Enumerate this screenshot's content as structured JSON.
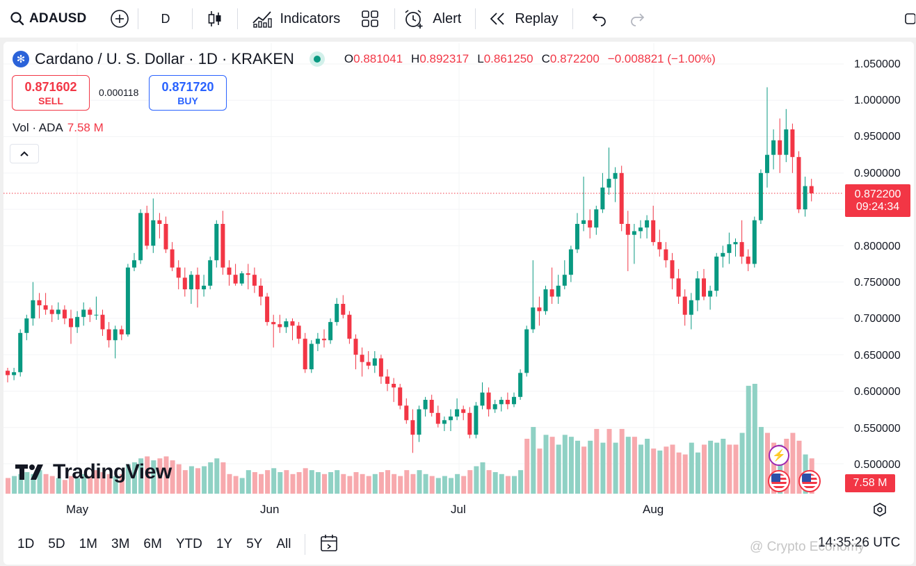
{
  "toolbar": {
    "symbol": "ADAUSD",
    "interval": "D",
    "indicators_label": "Indicators",
    "alert_label": "Alert",
    "replay_label": "Replay"
  },
  "legend": {
    "title": "Cardano / U. S. Dollar · 1D · KRAKEN",
    "open_key": "O",
    "open": "0.881041",
    "high_key": "H",
    "high": "0.892317",
    "low_key": "L",
    "low": "0.861250",
    "close_key": "C",
    "close": "0.872200",
    "change": "−0.008821 (−1.00%)"
  },
  "trade": {
    "sell_price": "0.871602",
    "sell_label": "SELL",
    "spread": "0.000118",
    "buy_price": "0.871720",
    "buy_label": "BUY"
  },
  "volume_legend": {
    "label": "Vol · ADA",
    "value": "7.58 M"
  },
  "price_axis": [
    "1.050000",
    "1.000000",
    "0.950000",
    "0.900000",
    "0.800000",
    "0.750000",
    "0.700000",
    "0.650000",
    "0.600000",
    "0.550000",
    "0.500000"
  ],
  "last_price_tag": {
    "price": "0.872200",
    "countdown": "09:24:34"
  },
  "volume_tag": "7.58 M",
  "time_axis": [
    "May",
    "Jun",
    "Jul",
    "Aug"
  ],
  "ranges": [
    "1D",
    "5D",
    "1M",
    "3M",
    "6M",
    "YTD",
    "1Y",
    "5Y",
    "All"
  ],
  "clock": "14:35:26 UTC",
  "watermark": "@ Crypto Economy",
  "logo_text": "TradingView",
  "colors": {
    "up": "#089981",
    "down": "#f23645",
    "up_vol": "#8fd1c4",
    "down_vol": "#f7a9ad"
  },
  "chart_data": {
    "type": "candlestick",
    "ylim": [
      0.5,
      1.05
    ],
    "candles": [
      [
        0.628,
        0.632,
        0.612,
        0.622
      ],
      [
        0.622,
        0.632,
        0.615,
        0.626
      ],
      [
        0.626,
        0.685,
        0.62,
        0.68
      ],
      [
        0.68,
        0.705,
        0.67,
        0.7
      ],
      [
        0.7,
        0.75,
        0.69,
        0.725
      ],
      [
        0.725,
        0.735,
        0.7,
        0.718
      ],
      [
        0.718,
        0.735,
        0.705,
        0.712
      ],
      [
        0.712,
        0.718,
        0.695,
        0.706
      ],
      [
        0.706,
        0.722,
        0.698,
        0.712
      ],
      [
        0.712,
        0.718,
        0.692,
        0.7
      ],
      [
        0.7,
        0.712,
        0.665,
        0.688
      ],
      [
        0.688,
        0.71,
        0.68,
        0.702
      ],
      [
        0.702,
        0.722,
        0.69,
        0.712
      ],
      [
        0.712,
        0.715,
        0.695,
        0.705
      ],
      [
        0.705,
        0.73,
        0.698,
        0.705
      ],
      [
        0.705,
        0.712,
        0.676,
        0.685
      ],
      [
        0.685,
        0.695,
        0.66,
        0.67
      ],
      [
        0.67,
        0.69,
        0.645,
        0.685
      ],
      [
        0.685,
        0.69,
        0.67,
        0.678
      ],
      [
        0.678,
        0.775,
        0.675,
        0.77
      ],
      [
        0.77,
        0.79,
        0.765,
        0.78
      ],
      [
        0.78,
        0.85,
        0.775,
        0.845
      ],
      [
        0.845,
        0.855,
        0.795,
        0.8
      ],
      [
        0.8,
        0.865,
        0.79,
        0.835
      ],
      [
        0.835,
        0.845,
        0.81,
        0.83
      ],
      [
        0.83,
        0.84,
        0.79,
        0.795
      ],
      [
        0.795,
        0.805,
        0.765,
        0.77
      ],
      [
        0.77,
        0.78,
        0.74,
        0.756
      ],
      [
        0.756,
        0.77,
        0.73,
        0.74
      ],
      [
        0.74,
        0.765,
        0.72,
        0.76
      ],
      [
        0.76,
        0.77,
        0.715,
        0.74
      ],
      [
        0.74,
        0.76,
        0.73,
        0.745
      ],
      [
        0.745,
        0.785,
        0.74,
        0.78
      ],
      [
        0.78,
        0.835,
        0.77,
        0.83
      ],
      [
        0.83,
        0.848,
        0.76,
        0.77
      ],
      [
        0.77,
        0.78,
        0.745,
        0.76
      ],
      [
        0.76,
        0.775,
        0.745,
        0.748
      ],
      [
        0.748,
        0.765,
        0.745,
        0.762
      ],
      [
        0.762,
        0.775,
        0.74,
        0.76
      ],
      [
        0.76,
        0.77,
        0.735,
        0.745
      ],
      [
        0.745,
        0.755,
        0.718,
        0.73
      ],
      [
        0.73,
        0.735,
        0.69,
        0.695
      ],
      [
        0.695,
        0.705,
        0.66,
        0.692
      ],
      [
        0.692,
        0.705,
        0.68,
        0.688
      ],
      [
        0.688,
        0.7,
        0.68,
        0.696
      ],
      [
        0.696,
        0.7,
        0.67,
        0.69
      ],
      [
        0.69,
        0.695,
        0.665,
        0.672
      ],
      [
        0.672,
        0.68,
        0.625,
        0.63
      ],
      [
        0.63,
        0.67,
        0.625,
        0.665
      ],
      [
        0.665,
        0.68,
        0.655,
        0.672
      ],
      [
        0.672,
        0.685,
        0.66,
        0.67
      ],
      [
        0.67,
        0.7,
        0.665,
        0.695
      ],
      [
        0.695,
        0.728,
        0.69,
        0.72
      ],
      [
        0.72,
        0.732,
        0.7,
        0.705
      ],
      [
        0.705,
        0.71,
        0.665,
        0.672
      ],
      [
        0.672,
        0.678,
        0.63,
        0.65
      ],
      [
        0.65,
        0.66,
        0.62,
        0.64
      ],
      [
        0.64,
        0.655,
        0.63,
        0.635
      ],
      [
        0.635,
        0.655,
        0.625,
        0.645
      ],
      [
        0.645,
        0.65,
        0.61,
        0.62
      ],
      [
        0.62,
        0.63,
        0.6,
        0.61
      ],
      [
        0.61,
        0.618,
        0.585,
        0.605
      ],
      [
        0.605,
        0.61,
        0.575,
        0.58
      ],
      [
        0.58,
        0.59,
        0.555,
        0.56
      ],
      [
        0.56,
        0.575,
        0.515,
        0.54
      ],
      [
        0.54,
        0.58,
        0.53,
        0.575
      ],
      [
        0.575,
        0.592,
        0.565,
        0.588
      ],
      [
        0.588,
        0.595,
        0.565,
        0.57
      ],
      [
        0.57,
        0.58,
        0.55,
        0.555
      ],
      [
        0.555,
        0.565,
        0.545,
        0.56
      ],
      [
        0.56,
        0.575,
        0.545,
        0.565
      ],
      [
        0.565,
        0.59,
        0.56,
        0.575
      ],
      [
        0.575,
        0.58,
        0.56,
        0.57
      ],
      [
        0.57,
        0.578,
        0.535,
        0.54
      ],
      [
        0.54,
        0.585,
        0.535,
        0.58
      ],
      [
        0.58,
        0.612,
        0.575,
        0.598
      ],
      [
        0.598,
        0.605,
        0.565,
        0.575
      ],
      [
        0.575,
        0.588,
        0.57,
        0.582
      ],
      [
        0.582,
        0.592,
        0.572,
        0.588
      ],
      [
        0.588,
        0.598,
        0.575,
        0.582
      ],
      [
        0.582,
        0.598,
        0.578,
        0.592
      ],
      [
        0.592,
        0.63,
        0.588,
        0.625
      ],
      [
        0.625,
        0.69,
        0.62,
        0.685
      ],
      [
        0.685,
        0.78,
        0.68,
        0.715
      ],
      [
        0.715,
        0.73,
        0.69,
        0.71
      ],
      [
        0.71,
        0.745,
        0.705,
        0.74
      ],
      [
        0.74,
        0.77,
        0.72,
        0.73
      ],
      [
        0.73,
        0.76,
        0.72,
        0.745
      ],
      [
        0.745,
        0.78,
        0.74,
        0.76
      ],
      [
        0.76,
        0.8,
        0.75,
        0.795
      ],
      [
        0.795,
        0.845,
        0.79,
        0.83
      ],
      [
        0.83,
        0.895,
        0.82,
        0.835
      ],
      [
        0.835,
        0.85,
        0.81,
        0.825
      ],
      [
        0.825,
        0.855,
        0.815,
        0.85
      ],
      [
        0.85,
        0.9,
        0.845,
        0.88
      ],
      [
        0.88,
        0.935,
        0.87,
        0.892
      ],
      [
        0.892,
        0.908,
        0.86,
        0.9
      ],
      [
        0.9,
        0.91,
        0.82,
        0.83
      ],
      [
        0.83,
        0.848,
        0.765,
        0.815
      ],
      [
        0.815,
        0.83,
        0.775,
        0.82
      ],
      [
        0.82,
        0.835,
        0.81,
        0.825
      ],
      [
        0.825,
        0.842,
        0.81,
        0.835
      ],
      [
        0.835,
        0.855,
        0.8,
        0.805
      ],
      [
        0.805,
        0.822,
        0.785,
        0.795
      ],
      [
        0.795,
        0.805,
        0.77,
        0.78
      ],
      [
        0.78,
        0.79,
        0.74,
        0.755
      ],
      [
        0.755,
        0.768,
        0.72,
        0.73
      ],
      [
        0.73,
        0.74,
        0.69,
        0.705
      ],
      [
        0.705,
        0.735,
        0.685,
        0.725
      ],
      [
        0.725,
        0.765,
        0.71,
        0.755
      ],
      [
        0.755,
        0.768,
        0.725,
        0.73
      ],
      [
        0.73,
        0.745,
        0.712,
        0.738
      ],
      [
        0.738,
        0.79,
        0.73,
        0.785
      ],
      [
        0.785,
        0.8,
        0.77,
        0.79
      ],
      [
        0.79,
        0.818,
        0.775,
        0.802
      ],
      [
        0.802,
        0.81,
        0.785,
        0.805
      ],
      [
        0.805,
        0.835,
        0.775,
        0.785
      ],
      [
        0.785,
        0.795,
        0.765,
        0.775
      ],
      [
        0.775,
        0.84,
        0.77,
        0.835
      ],
      [
        0.835,
        0.905,
        0.83,
        0.9
      ],
      [
        0.9,
        1.018,
        0.88,
        0.925
      ],
      [
        0.925,
        0.96,
        0.905,
        0.945
      ],
      [
        0.945,
        0.975,
        0.9,
        0.925
      ],
      [
        0.925,
        0.988,
        0.915,
        0.96
      ],
      [
        0.96,
        0.968,
        0.9,
        0.922
      ],
      [
        0.922,
        0.93,
        0.845,
        0.85
      ],
      [
        0.85,
        0.895,
        0.84,
        0.882
      ],
      [
        0.882,
        0.892,
        0.861,
        0.872
      ]
    ],
    "volumes": [
      [
        0.08,
        0
      ],
      [
        0.09,
        1
      ],
      [
        0.1,
        1
      ],
      [
        0.11,
        1
      ],
      [
        0.1,
        1
      ],
      [
        0.12,
        1
      ],
      [
        0.1,
        0
      ],
      [
        0.09,
        0
      ],
      [
        0.08,
        1
      ],
      [
        0.07,
        0
      ],
      [
        0.09,
        0
      ],
      [
        0.08,
        1
      ],
      [
        0.1,
        1
      ],
      [
        0.09,
        0
      ],
      [
        0.12,
        0
      ],
      [
        0.11,
        0
      ],
      [
        0.1,
        0
      ],
      [
        0.09,
        1
      ],
      [
        0.1,
        0
      ],
      [
        0.15,
        1
      ],
      [
        0.16,
        1
      ],
      [
        0.18,
        1
      ],
      [
        0.19,
        0
      ],
      [
        0.17,
        1
      ],
      [
        0.18,
        0
      ],
      [
        0.19,
        0
      ],
      [
        0.17,
        0
      ],
      [
        0.15,
        0
      ],
      [
        0.12,
        0
      ],
      [
        0.14,
        1
      ],
      [
        0.13,
        0
      ],
      [
        0.14,
        1
      ],
      [
        0.16,
        1
      ],
      [
        0.18,
        1
      ],
      [
        0.16,
        0
      ],
      [
        0.1,
        0
      ],
      [
        0.09,
        0
      ],
      [
        0.08,
        1
      ],
      [
        0.12,
        1
      ],
      [
        0.11,
        0
      ],
      [
        0.1,
        0
      ],
      [
        0.12,
        0
      ],
      [
        0.13,
        1
      ],
      [
        0.11,
        1
      ],
      [
        0.12,
        0
      ],
      [
        0.1,
        0
      ],
      [
        0.11,
        0
      ],
      [
        0.13,
        0
      ],
      [
        0.12,
        1
      ],
      [
        0.11,
        1
      ],
      [
        0.1,
        0
      ],
      [
        0.11,
        1
      ],
      [
        0.12,
        1
      ],
      [
        0.1,
        0
      ],
      [
        0.09,
        0
      ],
      [
        0.11,
        0
      ],
      [
        0.1,
        0
      ],
      [
        0.09,
        0
      ],
      [
        0.1,
        1
      ],
      [
        0.11,
        0
      ],
      [
        0.12,
        0
      ],
      [
        0.1,
        0
      ],
      [
        0.09,
        0
      ],
      [
        0.12,
        0
      ],
      [
        0.1,
        0
      ],
      [
        0.12,
        1
      ],
      [
        0.1,
        1
      ],
      [
        0.09,
        0
      ],
      [
        0.08,
        1
      ],
      [
        0.09,
        1
      ],
      [
        0.08,
        1
      ],
      [
        0.1,
        1
      ],
      [
        0.09,
        0
      ],
      [
        0.12,
        0
      ],
      [
        0.14,
        1
      ],
      [
        0.16,
        1
      ],
      [
        0.12,
        0
      ],
      [
        0.11,
        1
      ],
      [
        0.1,
        1
      ],
      [
        0.09,
        0
      ],
      [
        0.09,
        1
      ],
      [
        0.12,
        1
      ],
      [
        0.28,
        0
      ],
      [
        0.34,
        1
      ],
      [
        0.23,
        0
      ],
      [
        0.3,
        1
      ],
      [
        0.29,
        0
      ],
      [
        0.25,
        1
      ],
      [
        0.3,
        1
      ],
      [
        0.29,
        1
      ],
      [
        0.27,
        1
      ],
      [
        0.24,
        0
      ],
      [
        0.27,
        1
      ],
      [
        0.33,
        0
      ],
      [
        0.26,
        1
      ],
      [
        0.33,
        0
      ],
      [
        0.26,
        1
      ],
      [
        0.33,
        0
      ],
      [
        0.29,
        1
      ],
      [
        0.29,
        0
      ],
      [
        0.25,
        1
      ],
      [
        0.28,
        1
      ],
      [
        0.23,
        0
      ],
      [
        0.22,
        1
      ],
      [
        0.24,
        0
      ],
      [
        0.25,
        0
      ],
      [
        0.21,
        0
      ],
      [
        0.2,
        0
      ],
      [
        0.26,
        1
      ],
      [
        0.21,
        1
      ],
      [
        0.25,
        0
      ],
      [
        0.27,
        1
      ],
      [
        0.26,
        1
      ],
      [
        0.28,
        1
      ],
      [
        0.25,
        0
      ],
      [
        0.25,
        0
      ],
      [
        0.31,
        1
      ],
      [
        0.55,
        1
      ],
      [
        0.56,
        1
      ],
      [
        0.34,
        1
      ],
      [
        0.31,
        0
      ],
      [
        0.26,
        0
      ],
      [
        0.25,
        1
      ],
      [
        0.28,
        0
      ],
      [
        0.31,
        0
      ],
      [
        0.27,
        0
      ],
      [
        0.2,
        1
      ],
      [
        0.18,
        0
      ]
    ]
  }
}
